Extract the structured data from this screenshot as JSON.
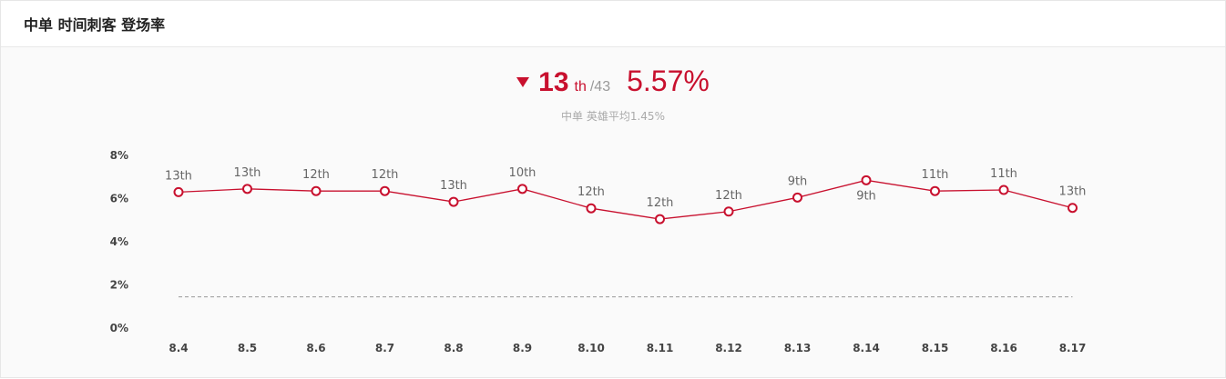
{
  "header": {
    "title": "中单 时间刺客 登场率"
  },
  "summary": {
    "trend_icon": "triangle-down-icon",
    "rank": "13",
    "rank_suffix": "th",
    "rank_total": "/43",
    "rate": "5.57%",
    "average_note": "中单 英雄平均1.45%"
  },
  "colors": {
    "accent": "#c8102e",
    "average_line": "#999999"
  },
  "chart_data": {
    "type": "line",
    "categories": [
      "8.4",
      "8.5",
      "8.6",
      "8.7",
      "8.8",
      "8.9",
      "8.10",
      "8.11",
      "8.12",
      "8.13",
      "8.14",
      "8.15",
      "8.16",
      "8.17"
    ],
    "series": [
      {
        "values": [
          6.3,
          6.45,
          6.35,
          6.35,
          5.85,
          6.45,
          5.55,
          5.05,
          5.4,
          6.05,
          6.85,
          6.35,
          6.4,
          5.57
        ]
      }
    ],
    "point_labels": [
      "13th",
      "13th",
      "12th",
      "12th",
      "13th",
      "10th",
      "12th",
      "12th",
      "12th",
      "9th",
      "9th",
      "11th",
      "11th",
      "13th"
    ],
    "label_below": [
      false,
      false,
      false,
      false,
      false,
      false,
      false,
      false,
      false,
      false,
      true,
      false,
      false,
      false
    ],
    "average": 1.45,
    "ylim": [
      0,
      8
    ],
    "yticks": [
      0,
      2,
      4,
      6,
      8
    ],
    "ytick_labels": [
      "0%",
      "2%",
      "4%",
      "6%",
      "8%"
    ],
    "grid": false
  }
}
